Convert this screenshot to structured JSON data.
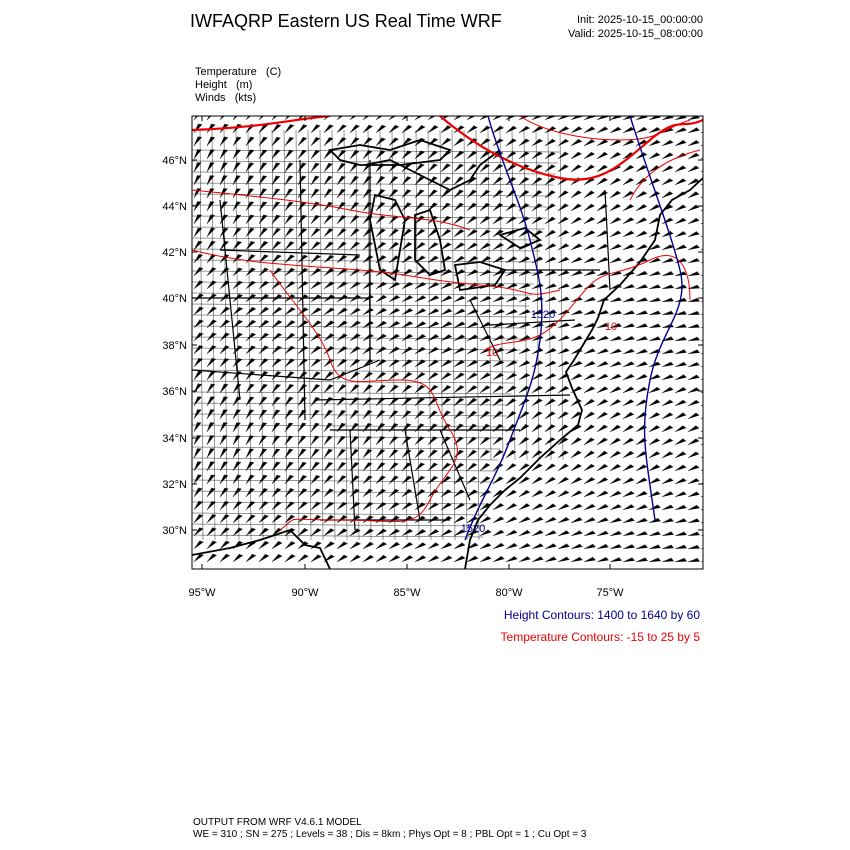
{
  "header": {
    "title": "IWFAQRP Eastern US Real Time WRF",
    "init": "Init: 2025-10-15_00:00:00",
    "valid": "Valid: 2025-10-15_08:00:00"
  },
  "fields": [
    "Temperature   (C)",
    "Height   (m)",
    "Winds   (kts)"
  ],
  "map": {
    "lat_labels": [
      "46°N",
      "44°N",
      "42°N",
      "40°N",
      "38°N",
      "36°N",
      "34°N",
      "32°N",
      "30°N"
    ],
    "lon_labels": [
      "95°W",
      "90°W",
      "85°W",
      "80°W",
      "75°W"
    ],
    "contour_labels": [
      "1520",
      "1520",
      "10",
      "10"
    ]
  },
  "legend": {
    "height": "Height Contours: 1400 to 1640 by 60",
    "temperature": "Temperature Contours: -15 to 25 by 5"
  },
  "footer": {
    "line1": "OUTPUT FROM WRF V4.6.1 MODEL",
    "line2": "WE = 310 ; SN = 275 ; Levels = 38 ; Dis = 8km ; Phys Opt = 8 ; PBL Opt = 1 ; Cu Opt = 3"
  }
}
